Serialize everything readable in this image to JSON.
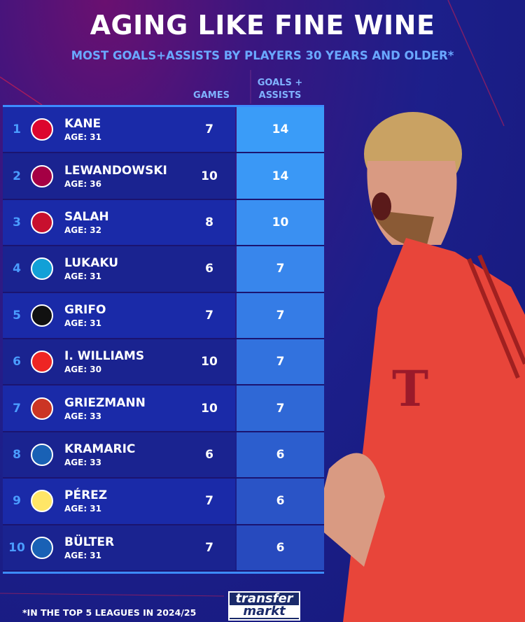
{
  "title": "AGING LIKE FINE WINE",
  "subtitle": "MOST GOALS+ASSISTS BY PLAYERS 30 YEARS AND OLDER*",
  "headers": {
    "games": "GAMES",
    "ga_line1": "GOALS +",
    "ga_line2": "ASSISTS"
  },
  "rows": [
    {
      "rank": "1",
      "name": "KANE",
      "age": "AGE: 31",
      "games": "7",
      "ga": "14",
      "club": "bayern",
      "color": "#dc052d"
    },
    {
      "rank": "2",
      "name": "LEWANDOWSKI",
      "age": "AGE: 36",
      "games": "10",
      "ga": "14",
      "club": "barcelona",
      "color": "#a50044"
    },
    {
      "rank": "3",
      "name": "SALAH",
      "age": "AGE: 32",
      "games": "8",
      "ga": "10",
      "club": "liverpool",
      "color": "#c8102e"
    },
    {
      "rank": "4",
      "name": "LUKAKU",
      "age": "AGE: 31",
      "games": "6",
      "ga": "7",
      "club": "napoli",
      "color": "#12a0d7"
    },
    {
      "rank": "5",
      "name": "GRIFO",
      "age": "AGE: 31",
      "games": "7",
      "ga": "7",
      "club": "freiburg",
      "color": "#111111"
    },
    {
      "rank": "6",
      "name": "I. WILLIAMS",
      "age": "AGE: 30",
      "games": "10",
      "ga": "7",
      "club": "athletic",
      "color": "#ee2523"
    },
    {
      "rank": "7",
      "name": "GRIEZMANN",
      "age": "AGE: 33",
      "games": "10",
      "ga": "7",
      "club": "atletico",
      "color": "#cb3524"
    },
    {
      "rank": "8",
      "name": "KRAMARIC",
      "age": "AGE: 33",
      "games": "6",
      "ga": "6",
      "club": "hoffenheim",
      "color": "#1961b5"
    },
    {
      "rank": "9",
      "name": "PÉREZ",
      "age": "AGE: 31",
      "games": "7",
      "ga": "6",
      "club": "villarreal",
      "color": "#ffe667"
    },
    {
      "rank": "10",
      "name": "BÜLTER",
      "age": "AGE: 31",
      "games": "7",
      "ga": "6",
      "club": "hoffenheim",
      "color": "#1961b5"
    }
  ],
  "ga_colors": [
    "#3a9cf8",
    "#3a98f6",
    "#3a90f2",
    "#3886ec",
    "#357ce6",
    "#3272de",
    "#2f68d6",
    "#2c5ece",
    "#2a54c6",
    "#274abe"
  ],
  "footnote": "*IN THE TOP 5 LEAGUES IN 2024/25",
  "logo": {
    "line1": "transfer",
    "line2": "markt"
  }
}
